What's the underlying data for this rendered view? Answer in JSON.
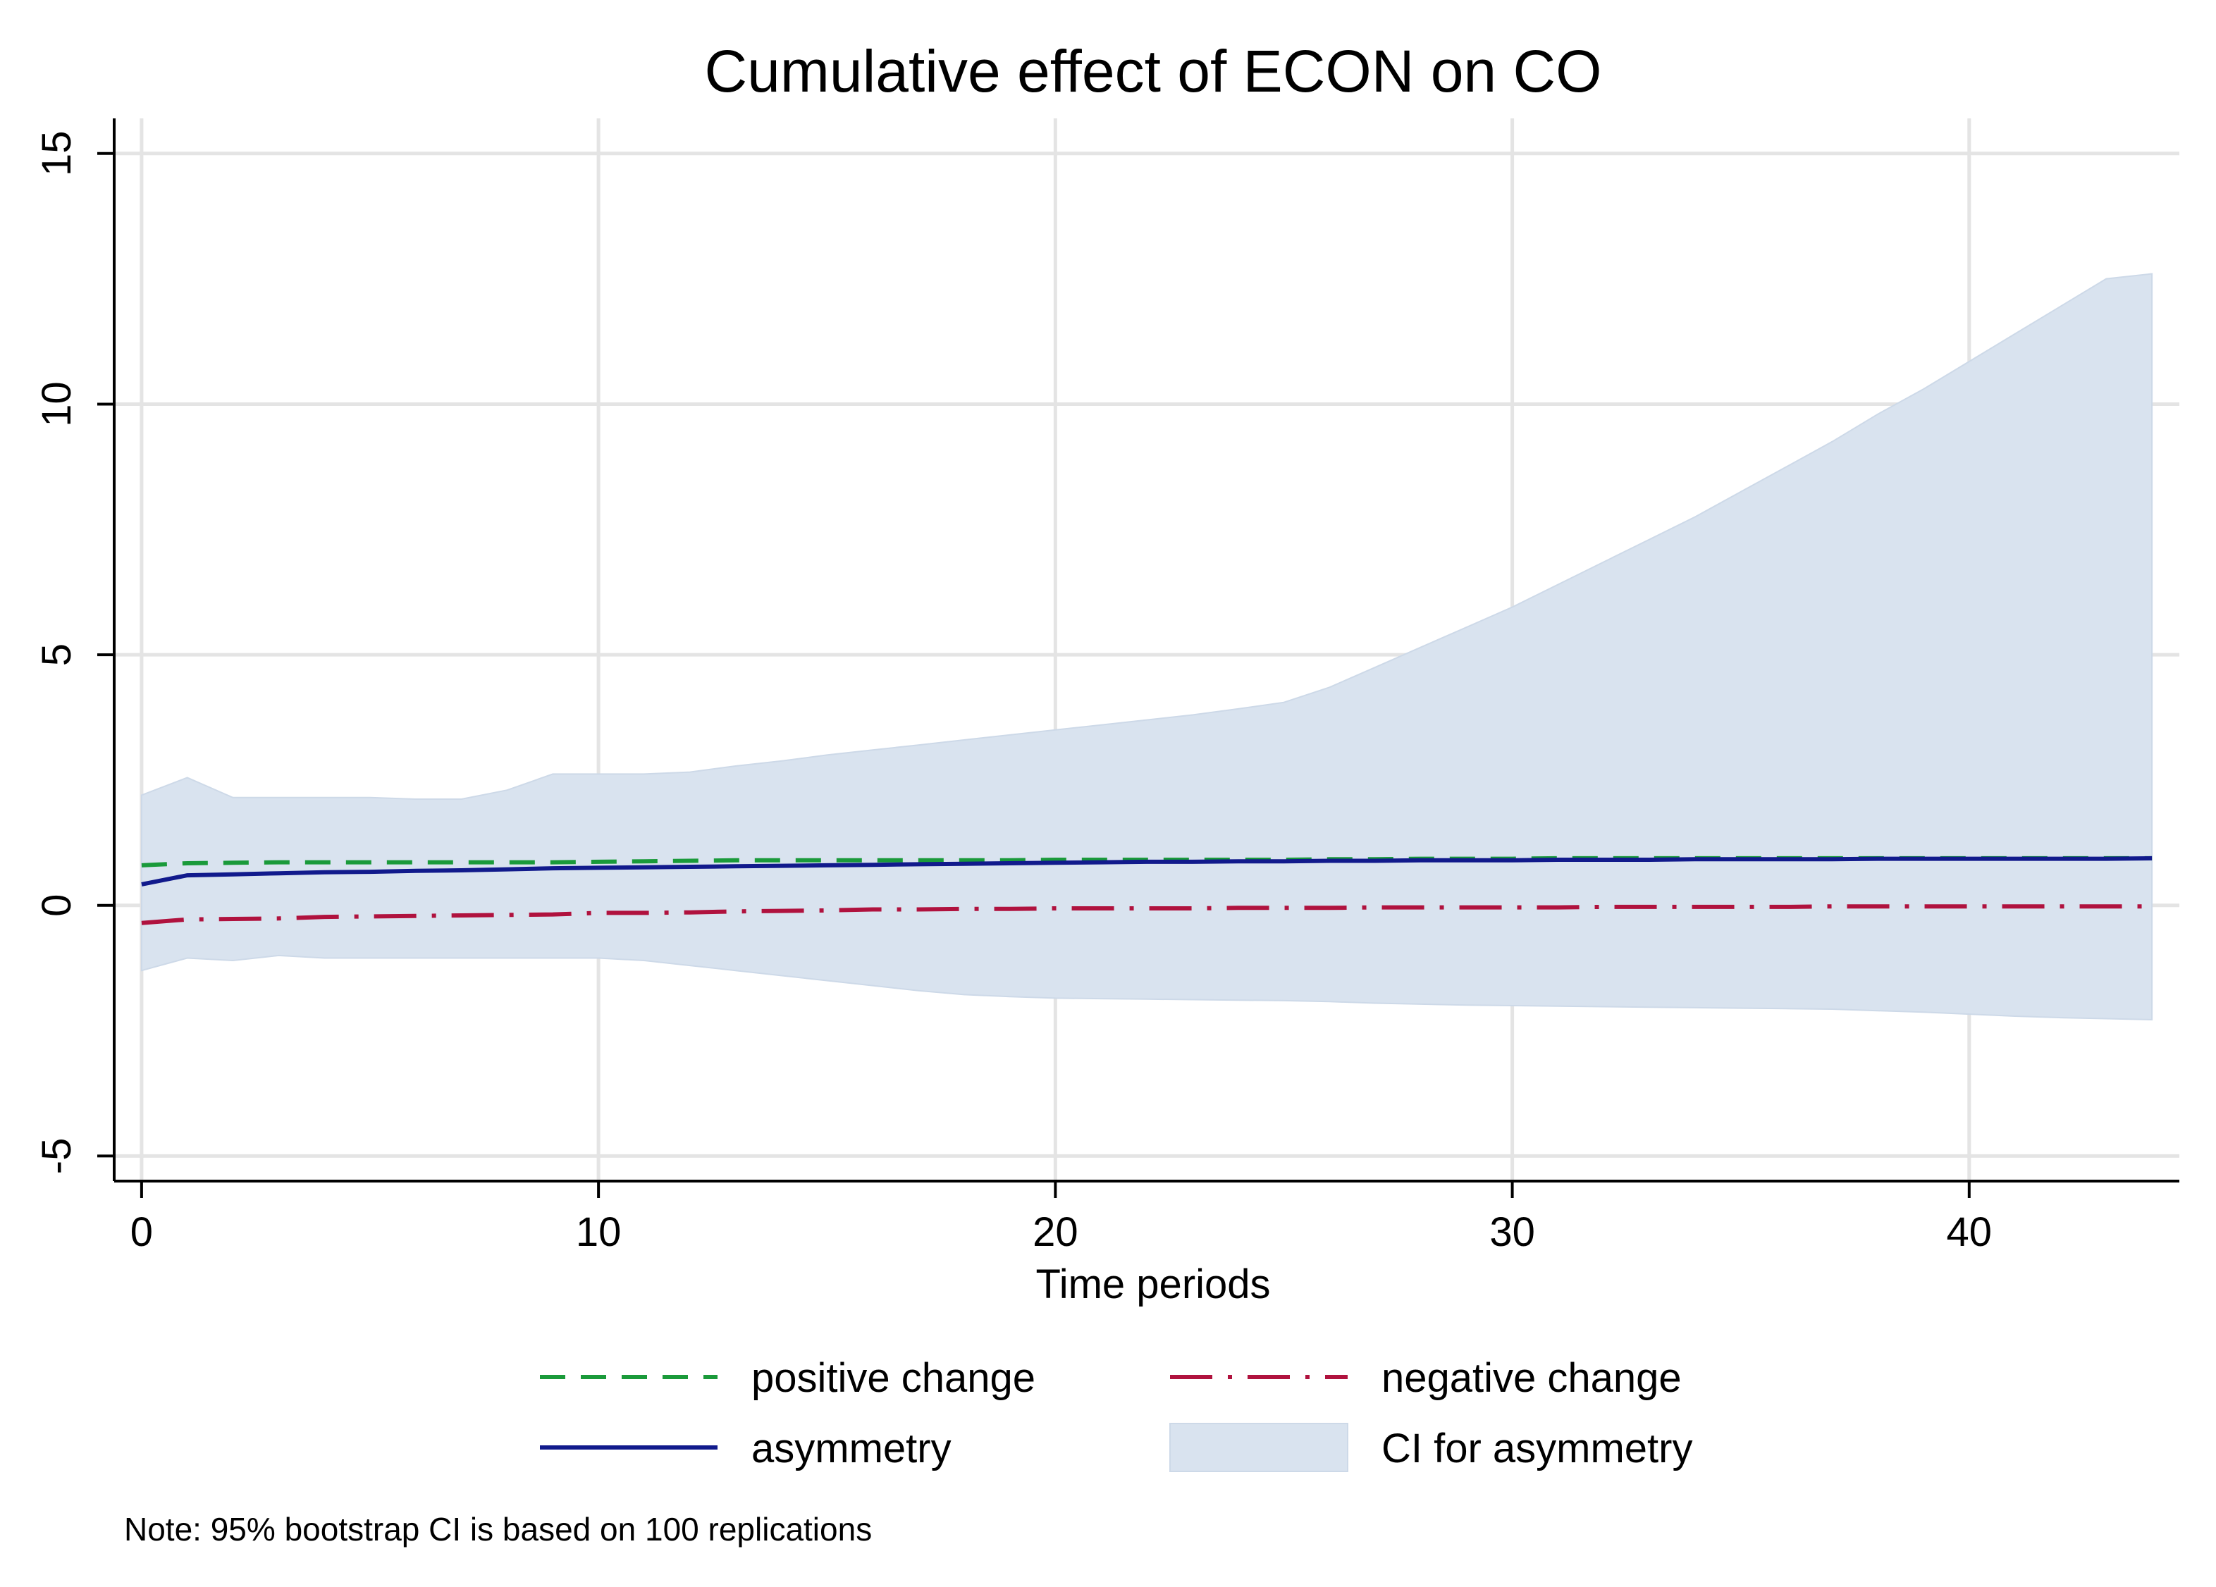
{
  "chart_data": {
    "type": "line",
    "title": "Cumulative effect of ECON on CO",
    "xlabel": "Time periods",
    "ylabel": "",
    "xlim": [
      0,
      44
    ],
    "ylim": [
      -5,
      15
    ],
    "xticks": [
      0,
      10,
      20,
      30,
      40
    ],
    "yticks": [
      -5,
      0,
      5,
      10,
      15
    ],
    "grid": true,
    "legend_position": "bottom",
    "note": "Note: 95% bootstrap CI is based on 100 replications",
    "x": [
      0,
      1,
      2,
      3,
      4,
      5,
      6,
      7,
      8,
      9,
      10,
      11,
      12,
      13,
      14,
      15,
      16,
      17,
      18,
      19,
      20,
      21,
      22,
      23,
      24,
      25,
      26,
      27,
      28,
      29,
      30,
      31,
      32,
      33,
      34,
      35,
      36,
      37,
      38,
      39,
      40,
      41,
      42,
      43,
      44
    ],
    "series": [
      {
        "name": "positive change",
        "style": "dash",
        "color": "#1a9a3a",
        "values": [
          0.8,
          0.84,
          0.85,
          0.86,
          0.86,
          0.86,
          0.86,
          0.86,
          0.86,
          0.86,
          0.87,
          0.88,
          0.89,
          0.9,
          0.9,
          0.9,
          0.9,
          0.9,
          0.9,
          0.9,
          0.91,
          0.91,
          0.91,
          0.91,
          0.91,
          0.91,
          0.92,
          0.92,
          0.93,
          0.93,
          0.93,
          0.94,
          0.94,
          0.94,
          0.94,
          0.94,
          0.94,
          0.94,
          0.94,
          0.94,
          0.94,
          0.94,
          0.94,
          0.94,
          0.94
        ]
      },
      {
        "name": "negative change",
        "style": "longdash-dot",
        "color": "#b0123e",
        "values": [
          -0.35,
          -0.28,
          -0.27,
          -0.26,
          -0.23,
          -0.22,
          -0.21,
          -0.2,
          -0.19,
          -0.18,
          -0.15,
          -0.15,
          -0.14,
          -0.12,
          -0.11,
          -0.1,
          -0.08,
          -0.08,
          -0.07,
          -0.07,
          -0.06,
          -0.06,
          -0.06,
          -0.06,
          -0.05,
          -0.05,
          -0.05,
          -0.04,
          -0.04,
          -0.04,
          -0.04,
          -0.04,
          -0.03,
          -0.03,
          -0.03,
          -0.03,
          -0.03,
          -0.02,
          -0.02,
          -0.02,
          -0.02,
          -0.02,
          -0.02,
          -0.02,
          -0.02
        ]
      },
      {
        "name": "asymmetry",
        "style": "solid",
        "color": "#111a8c",
        "values": [
          0.42,
          0.6,
          0.62,
          0.64,
          0.66,
          0.67,
          0.69,
          0.7,
          0.72,
          0.74,
          0.75,
          0.76,
          0.77,
          0.78,
          0.79,
          0.8,
          0.81,
          0.82,
          0.83,
          0.84,
          0.85,
          0.86,
          0.87,
          0.87,
          0.88,
          0.88,
          0.89,
          0.89,
          0.9,
          0.9,
          0.9,
          0.91,
          0.91,
          0.91,
          0.92,
          0.92,
          0.92,
          0.92,
          0.93,
          0.93,
          0.93,
          0.93,
          0.93,
          0.93,
          0.94
        ]
      }
    ],
    "ci": {
      "name": "CI for asymmetry",
      "color": "#d9e3ef",
      "upper": [
        2.2,
        2.55,
        2.15,
        2.15,
        2.15,
        2.15,
        2.12,
        2.12,
        2.3,
        2.62,
        2.62,
        2.62,
        2.66,
        2.78,
        2.88,
        3.0,
        3.1,
        3.2,
        3.3,
        3.4,
        3.5,
        3.6,
        3.7,
        3.8,
        3.92,
        4.05,
        4.35,
        4.75,
        5.15,
        5.55,
        5.95,
        6.4,
        6.85,
        7.3,
        7.75,
        8.25,
        8.75,
        9.25,
        9.8,
        10.3,
        10.85,
        11.4,
        11.95,
        12.5,
        12.6
      ],
      "lower": [
        -1.3,
        -1.05,
        -1.1,
        -1.0,
        -1.05,
        -1.05,
        -1.05,
        -1.05,
        -1.05,
        -1.05,
        -1.05,
        -1.1,
        -1.2,
        -1.3,
        -1.4,
        -1.5,
        -1.6,
        -1.7,
        -1.78,
        -1.82,
        -1.85,
        -1.86,
        -1.87,
        -1.88,
        -1.89,
        -1.9,
        -1.92,
        -1.95,
        -1.97,
        -1.99,
        -2.0,
        -2.01,
        -2.02,
        -2.03,
        -2.04,
        -2.05,
        -2.06,
        -2.07,
        -2.1,
        -2.13,
        -2.17,
        -2.21,
        -2.24,
        -2.26,
        -2.28
      ]
    }
  }
}
